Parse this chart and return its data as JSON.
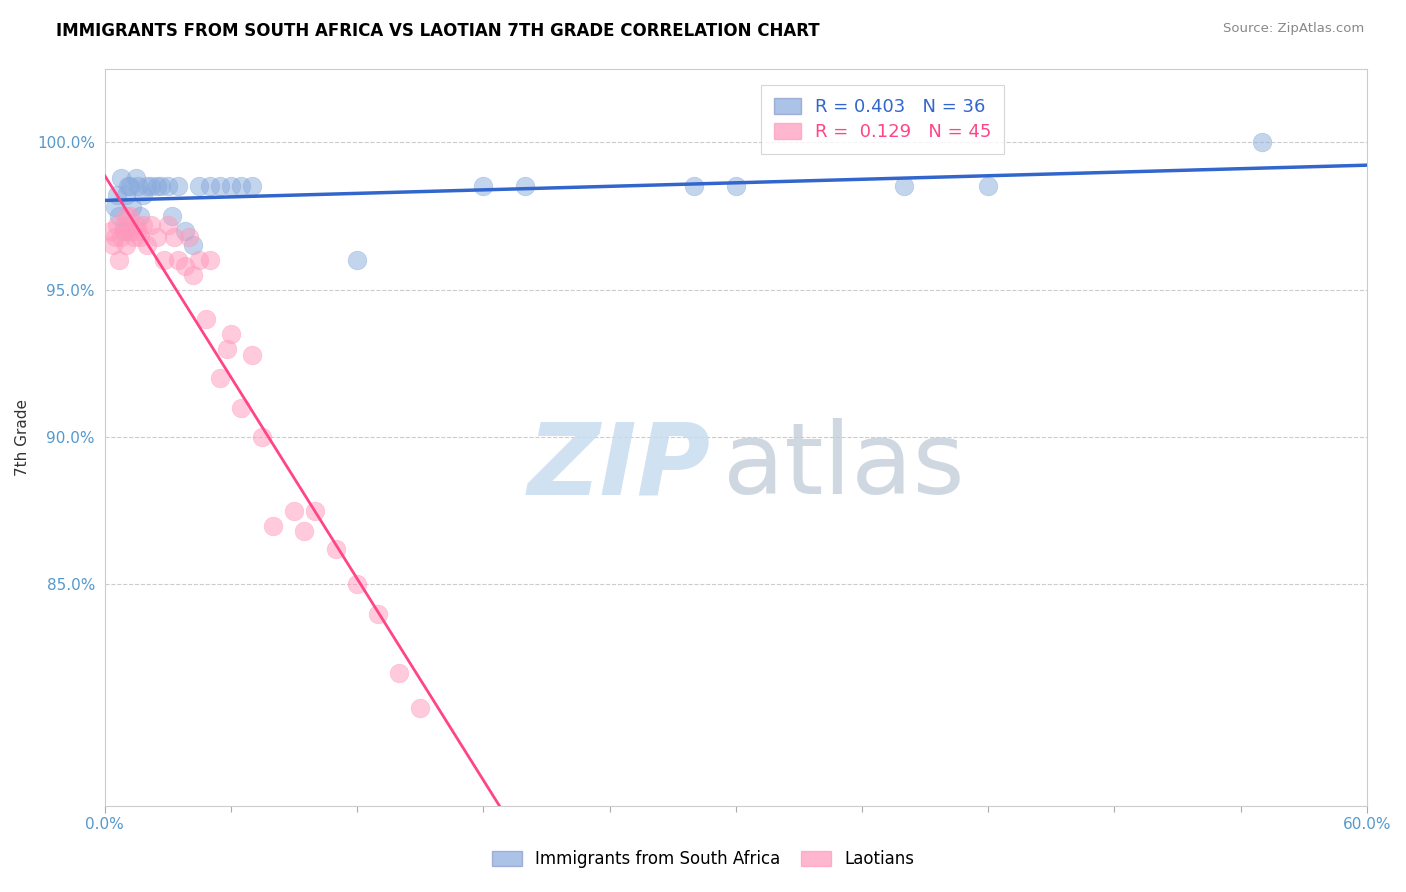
{
  "title": "IMMIGRANTS FROM SOUTH AFRICA VS LAOTIAN 7TH GRADE CORRELATION CHART",
  "source": "Source: ZipAtlas.com",
  "ylabel": "7th Grade",
  "ytick_labels": [
    "85.0%",
    "90.0%",
    "95.0%",
    "100.0%"
  ],
  "ytick_values": [
    0.85,
    0.9,
    0.95,
    1.0
  ],
  "xlim": [
    0.0,
    0.6
  ],
  "ylim": [
    0.775,
    1.025
  ],
  "legend_blue": "Immigrants from South Africa",
  "legend_pink": "Laotians",
  "R_blue": 0.403,
  "N_blue": 36,
  "R_pink": 0.129,
  "N_pink": 45,
  "blue_color": "#88AADD",
  "pink_color": "#FF99BB",
  "blue_scatter_x": [
    0.005,
    0.006,
    0.007,
    0.008,
    0.009,
    0.01,
    0.011,
    0.012,
    0.013,
    0.015,
    0.016,
    0.017,
    0.018,
    0.02,
    0.022,
    0.025,
    0.027,
    0.03,
    0.032,
    0.035,
    0.038,
    0.042,
    0.045,
    0.05,
    0.055,
    0.06,
    0.065,
    0.07,
    0.12,
    0.18,
    0.2,
    0.28,
    0.3,
    0.38,
    0.42,
    0.55
  ],
  "blue_scatter_y": [
    0.978,
    0.982,
    0.975,
    0.988,
    0.97,
    0.982,
    0.985,
    0.985,
    0.978,
    0.988,
    0.985,
    0.975,
    0.982,
    0.985,
    0.985,
    0.985,
    0.985,
    0.985,
    0.975,
    0.985,
    0.97,
    0.965,
    0.985,
    0.985,
    0.985,
    0.985,
    0.985,
    0.985,
    0.96,
    0.985,
    0.985,
    0.985,
    0.985,
    0.985,
    0.985,
    1.0
  ],
  "pink_scatter_x": [
    0.003,
    0.004,
    0.005,
    0.006,
    0.007,
    0.008,
    0.009,
    0.01,
    0.01,
    0.011,
    0.012,
    0.013,
    0.014,
    0.015,
    0.016,
    0.017,
    0.018,
    0.02,
    0.022,
    0.025,
    0.028,
    0.03,
    0.033,
    0.035,
    0.038,
    0.04,
    0.042,
    0.045,
    0.048,
    0.05,
    0.055,
    0.058,
    0.06,
    0.065,
    0.07,
    0.075,
    0.08,
    0.09,
    0.095,
    0.1,
    0.11,
    0.12,
    0.13,
    0.14,
    0.15
  ],
  "pink_scatter_y": [
    0.97,
    0.965,
    0.968,
    0.972,
    0.96,
    0.968,
    0.972,
    0.965,
    0.975,
    0.97,
    0.975,
    0.97,
    0.968,
    0.972,
    0.97,
    0.968,
    0.972,
    0.965,
    0.972,
    0.968,
    0.96,
    0.972,
    0.968,
    0.96,
    0.958,
    0.968,
    0.955,
    0.96,
    0.94,
    0.96,
    0.92,
    0.93,
    0.935,
    0.91,
    0.928,
    0.9,
    0.87,
    0.875,
    0.868,
    0.875,
    0.862,
    0.85,
    0.84,
    0.82,
    0.808
  ],
  "watermark_zip": "ZIP",
  "watermark_atlas": "atlas",
  "grid_color": "#CCCCCC",
  "title_fontsize": 12,
  "tick_color": "#5599CC",
  "ylabel_color": "#333333"
}
